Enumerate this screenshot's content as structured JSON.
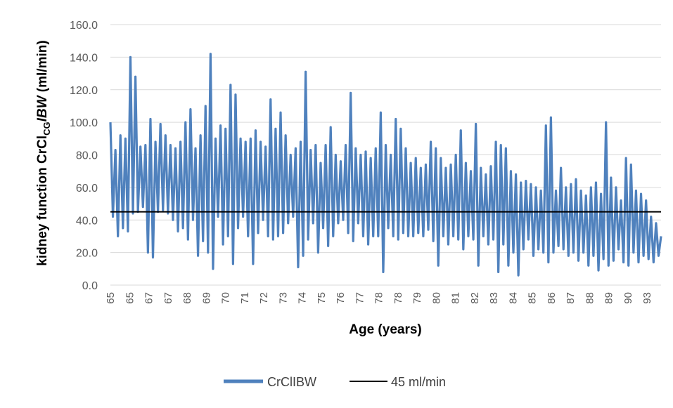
{
  "chart_data": {
    "type": "line",
    "title": "",
    "xlabel": "Age (years)",
    "ylabel": {
      "prefix": "kidney function CrCl",
      "subscript": "CG",
      "suffix_italic": "IBW",
      "unit": " (ml/min)"
    },
    "ylim": [
      0,
      160
    ],
    "yticks": [
      "0.0",
      "20.0",
      "40.0",
      "60.0",
      "80.0",
      "100.0",
      "120.0",
      "140.0",
      "160.0"
    ],
    "grid": true,
    "legend_position": "bottom",
    "x_tick_labels": [
      "65",
      "65",
      "67",
      "67",
      "68",
      "69",
      "70",
      "71",
      "72",
      "73",
      "74",
      "75",
      "76",
      "77",
      "78",
      "78",
      "79",
      "80",
      "81",
      "82",
      "83",
      "84",
      "85",
      "86",
      "87",
      "88",
      "89",
      "90",
      "93"
    ],
    "series": [
      {
        "name": "CrClIBW",
        "color": "#4f81bd",
        "values": [
          100,
          42,
          83,
          30,
          92,
          35,
          90,
          33,
          140,
          44,
          128,
          45,
          85,
          48,
          86,
          20,
          102,
          17,
          88,
          45,
          99,
          46,
          92,
          44,
          86,
          40,
          84,
          33,
          88,
          35,
          100,
          28,
          108,
          40,
          84,
          18,
          92,
          27,
          110,
          20,
          142,
          10,
          90,
          42,
          98,
          25,
          96,
          30,
          123,
          13,
          117,
          35,
          90,
          42,
          88,
          30,
          90,
          13,
          95,
          32,
          88,
          40,
          85,
          30,
          114,
          28,
          96,
          30,
          106,
          32,
          92,
          38,
          80,
          42,
          84,
          11,
          88,
          18,
          131,
          28,
          83,
          38,
          86,
          20,
          75,
          35,
          86,
          24,
          97,
          30,
          80,
          38,
          76,
          40,
          86,
          32,
          118,
          27,
          84,
          38,
          80,
          30,
          82,
          25,
          78,
          30,
          84,
          30,
          106,
          8,
          86,
          35,
          80,
          30,
          102,
          28,
          96,
          32,
          84,
          30,
          75,
          30,
          78,
          32,
          72,
          30,
          74,
          34,
          88,
          27,
          84,
          12,
          78,
          30,
          72,
          25,
          74,
          30,
          80,
          28,
          95,
          22,
          75,
          30,
          70,
          28,
          99,
          12,
          72,
          30,
          68,
          25,
          73,
          28,
          88,
          8,
          86,
          25,
          84,
          12,
          70,
          20,
          68,
          6,
          63,
          22,
          64,
          28,
          62,
          18,
          60,
          22,
          58,
          20,
          98,
          14,
          103,
          20,
          58,
          24,
          72,
          22,
          60,
          18,
          62,
          20,
          65,
          15,
          58,
          20,
          55,
          12,
          60,
          18,
          63,
          9,
          56,
          16,
          100,
          12,
          66,
          15,
          60,
          22,
          52,
          14,
          78,
          12,
          74,
          20,
          58,
          14,
          56,
          18,
          52,
          16,
          42,
          14,
          38,
          18,
          30
        ],
        "x_start_index": 0
      },
      {
        "name": "45 ml/min",
        "color": "#000000",
        "values": [
          45,
          45
        ]
      }
    ]
  }
}
